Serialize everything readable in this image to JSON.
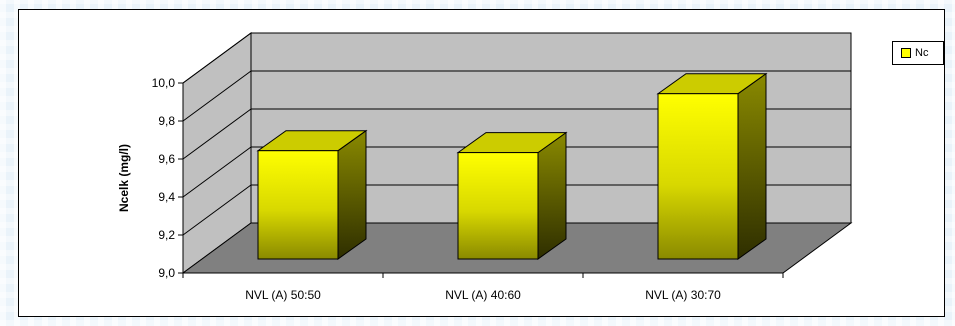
{
  "chart_data": {
    "type": "bar",
    "categories": [
      "NVL (A) 50:50",
      "NVL (A) 40:60",
      "NVL (A) 30:70"
    ],
    "series": [
      {
        "name": "Nc",
        "values": [
          9.57,
          9.56,
          9.87
        ],
        "color": "#ffff00"
      }
    ],
    "xlabel": "",
    "ylabel": "Ncelk (mg/l)",
    "ylim": [
      9.0,
      10.0
    ],
    "yticks": [
      "9,0",
      "9,2",
      "9,4",
      "9,6",
      "9,8",
      "10,0"
    ],
    "yticks_values": [
      9.0,
      9.2,
      9.4,
      9.6,
      9.8,
      10.0
    ],
    "grid": true,
    "legend": "right",
    "style": "3d-column",
    "colors": {
      "back_wall": "#c0c0c0",
      "floor": "#808080",
      "bar_top": "#cccc00",
      "bar_side": "#808000"
    }
  }
}
